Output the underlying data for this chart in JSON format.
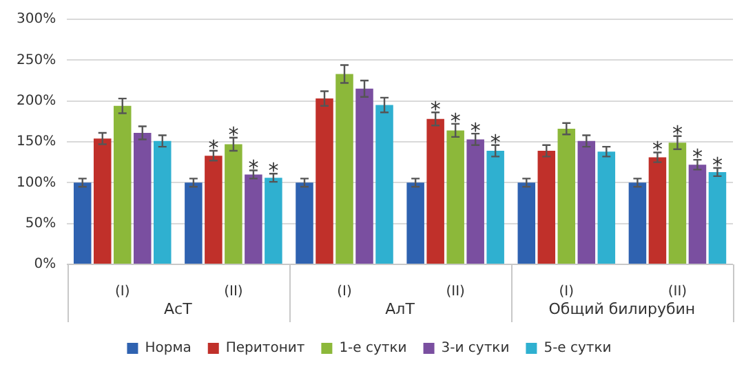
{
  "chart_data": {
    "type": "bar",
    "categories": [
      "(I)",
      "(II)",
      "(I)",
      "(II)",
      "(I)",
      "(II)"
    ],
    "annotations": [
      "АсТ",
      "АлТ",
      "Общий билирубин"
    ],
    "series": [
      {
        "name": "Норма",
        "color": "#2f62b0",
        "values": [
          100,
          100,
          100,
          100,
          100,
          100
        ],
        "errors": [
          5,
          5,
          5,
          5,
          5,
          5
        ]
      },
      {
        "name": "Перитонит",
        "color": "#c0302a",
        "values": [
          154,
          133,
          203,
          178,
          139,
          131
        ],
        "errors": [
          7,
          6,
          9,
          8,
          7,
          6
        ],
        "value_labels": [
          null,
          "*",
          null,
          "*",
          null,
          "*"
        ]
      },
      {
        "name": "1-е сутки",
        "color": "#8cb83a",
        "values": [
          194,
          147,
          233,
          164,
          166,
          149
        ],
        "errors": [
          9,
          8,
          11,
          8,
          7,
          8
        ],
        "value_labels": [
          null,
          "*",
          null,
          "*",
          null,
          "*"
        ]
      },
      {
        "name": "3-и сутки",
        "color": "#7a4fa0",
        "values": [
          161,
          110,
          215,
          153,
          151,
          122
        ],
        "errors": [
          8,
          5,
          10,
          7,
          7,
          6
        ],
        "value_labels": [
          null,
          "*",
          null,
          "*",
          null,
          "*"
        ]
      },
      {
        "name": "5-е сутки",
        "color": "#2fb0d0",
        "values": [
          151,
          106,
          195,
          139,
          138,
          113
        ],
        "errors": [
          7,
          5,
          9,
          7,
          6,
          5
        ],
        "value_labels": [
          null,
          "*",
          null,
          "*",
          null,
          "*"
        ]
      }
    ],
    "ylim": [
      0,
      300
    ],
    "yticks": [
      {
        "value": 0,
        "label": "0%"
      },
      {
        "value": 50,
        "label": "50%"
      },
      {
        "value": 100,
        "label": "100%"
      },
      {
        "value": 150,
        "label": "150%"
      },
      {
        "value": 200,
        "label": "200%"
      },
      {
        "value": 250,
        "label": "250%"
      },
      {
        "value": 300,
        "label": "300%"
      }
    ],
    "grid": "y",
    "legend": "bottom"
  }
}
